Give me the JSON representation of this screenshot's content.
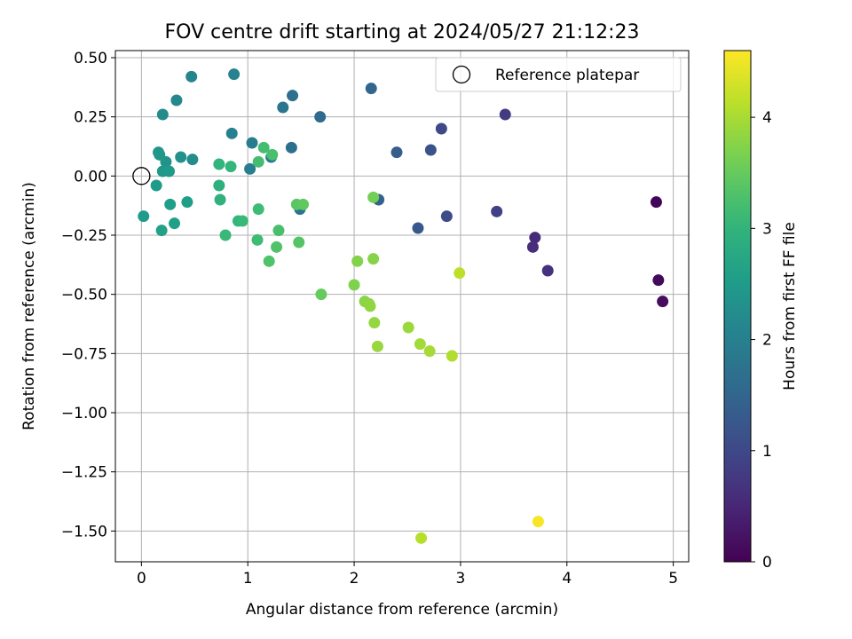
{
  "chart_data": {
    "type": "scatter",
    "title": "FOV centre drift starting at 2024/05/27 21:12:23",
    "xlabel": "Angular distance from reference (arcmin)",
    "ylabel": "Rotation from reference (arcmin)",
    "xlim": [
      -0.245,
      5.145
    ],
    "ylim": [
      -1.63,
      0.53
    ],
    "x_ticks": [
      0,
      1,
      2,
      3,
      4,
      5
    ],
    "x_tick_labels": [
      "0",
      "1",
      "2",
      "3",
      "4",
      "5"
    ],
    "y_ticks": [
      0.5,
      0.25,
      0.0,
      -0.25,
      -0.5,
      -0.75,
      -1.0,
      -1.25,
      -1.5
    ],
    "y_tick_labels": [
      "0.50",
      "0.25",
      "0.00",
      "−0.25",
      "−0.50",
      "−0.75",
      "−1.00",
      "−1.25",
      "−1.50"
    ],
    "grid": true,
    "colormap": "viridis",
    "colorbar": {
      "label": "Hours from first FF file",
      "range": [
        0,
        4.6
      ],
      "ticks": [
        0,
        1,
        2,
        3,
        4
      ],
      "tick_labels": [
        "0",
        "1",
        "2",
        "3",
        "4"
      ]
    },
    "legend": {
      "placement": "top-right",
      "entries": [
        {
          "label": "Reference platepar",
          "marker": "open-circle"
        }
      ]
    },
    "reference_point": {
      "x": 0.0,
      "y": 0.0
    },
    "points": [
      {
        "x": 4.84,
        "y": -0.11,
        "c": 0.05
      },
      {
        "x": 4.86,
        "y": -0.44,
        "c": 0.1
      },
      {
        "x": 4.9,
        "y": -0.53,
        "c": 0.15
      },
      {
        "x": 3.7,
        "y": -0.26,
        "c": 0.55
      },
      {
        "x": 3.68,
        "y": -0.3,
        "c": 0.6
      },
      {
        "x": 3.82,
        "y": -0.4,
        "c": 0.65
      },
      {
        "x": 3.42,
        "y": 0.26,
        "c": 0.8
      },
      {
        "x": 3.34,
        "y": -0.15,
        "c": 0.9
      },
      {
        "x": 2.82,
        "y": 0.2,
        "c": 1.0
      },
      {
        "x": 2.87,
        "y": -0.17,
        "c": 1.05
      },
      {
        "x": 2.72,
        "y": 0.11,
        "c": 1.15
      },
      {
        "x": 2.6,
        "y": -0.22,
        "c": 1.25
      },
      {
        "x": 2.4,
        "y": 0.1,
        "c": 1.35
      },
      {
        "x": 2.23,
        "y": -0.1,
        "c": 1.45
      },
      {
        "x": 2.16,
        "y": 0.37,
        "c": 1.5
      },
      {
        "x": 1.68,
        "y": 0.25,
        "c": 1.6
      },
      {
        "x": 1.42,
        "y": 0.34,
        "c": 1.65
      },
      {
        "x": 1.41,
        "y": 0.12,
        "c": 1.7
      },
      {
        "x": 1.49,
        "y": -0.14,
        "c": 1.75
      },
      {
        "x": 1.33,
        "y": 0.29,
        "c": 1.8
      },
      {
        "x": 1.22,
        "y": 0.08,
        "c": 1.85
      },
      {
        "x": 1.04,
        "y": 0.14,
        "c": 1.9
      },
      {
        "x": 1.02,
        "y": 0.03,
        "c": 1.95
      },
      {
        "x": 0.85,
        "y": 0.18,
        "c": 2.0
      },
      {
        "x": 0.87,
        "y": 0.43,
        "c": 2.05
      },
      {
        "x": 0.47,
        "y": 0.42,
        "c": 2.1
      },
      {
        "x": 0.33,
        "y": 0.32,
        "c": 2.15
      },
      {
        "x": 0.2,
        "y": 0.26,
        "c": 2.2
      },
      {
        "x": 0.48,
        "y": 0.07,
        "c": 2.25
      },
      {
        "x": 0.37,
        "y": 0.08,
        "c": 2.3
      },
      {
        "x": 0.23,
        "y": 0.06,
        "c": 2.35
      },
      {
        "x": 0.16,
        "y": 0.1,
        "c": 2.4
      },
      {
        "x": 0.17,
        "y": 0.09,
        "c": 2.42
      },
      {
        "x": 0.2,
        "y": 0.02,
        "c": 2.45
      },
      {
        "x": 0.26,
        "y": 0.02,
        "c": 2.48
      },
      {
        "x": 0.14,
        "y": -0.04,
        "c": 2.5
      },
      {
        "x": 0.02,
        "y": -0.17,
        "c": 2.52
      },
      {
        "x": 0.27,
        "y": -0.12,
        "c": 2.55
      },
      {
        "x": 0.43,
        "y": -0.11,
        "c": 2.58
      },
      {
        "x": 0.31,
        "y": -0.2,
        "c": 2.6
      },
      {
        "x": 0.19,
        "y": -0.23,
        "c": 2.62
      },
      {
        "x": 0.73,
        "y": -0.04,
        "c": 2.9
      },
      {
        "x": 0.74,
        "y": -0.1,
        "c": 2.95
      },
      {
        "x": 0.73,
        "y": 0.05,
        "c": 3.0
      },
      {
        "x": 0.84,
        "y": 0.04,
        "c": 3.05
      },
      {
        "x": 0.91,
        "y": -0.19,
        "c": 3.05
      },
      {
        "x": 0.95,
        "y": -0.19,
        "c": 3.1
      },
      {
        "x": 0.79,
        "y": -0.25,
        "c": 3.1
      },
      {
        "x": 1.1,
        "y": -0.14,
        "c": 3.15
      },
      {
        "x": 1.09,
        "y": -0.27,
        "c": 3.15
      },
      {
        "x": 1.15,
        "y": 0.12,
        "c": 3.2
      },
      {
        "x": 1.1,
        "y": 0.06,
        "c": 3.2
      },
      {
        "x": 1.23,
        "y": 0.09,
        "c": 3.25
      },
      {
        "x": 1.29,
        "y": -0.23,
        "c": 3.25
      },
      {
        "x": 1.27,
        "y": -0.3,
        "c": 3.3
      },
      {
        "x": 1.2,
        "y": -0.36,
        "c": 3.3
      },
      {
        "x": 1.48,
        "y": -0.28,
        "c": 3.35
      },
      {
        "x": 1.46,
        "y": -0.12,
        "c": 3.4
      },
      {
        "x": 1.52,
        "y": -0.12,
        "c": 3.45
      },
      {
        "x": 1.69,
        "y": -0.5,
        "c": 3.5
      },
      {
        "x": 2.18,
        "y": -0.09,
        "c": 3.6
      },
      {
        "x": 2.0,
        "y": -0.46,
        "c": 3.7
      },
      {
        "x": 2.03,
        "y": -0.36,
        "c": 3.72
      },
      {
        "x": 2.18,
        "y": -0.35,
        "c": 3.75
      },
      {
        "x": 2.1,
        "y": -0.53,
        "c": 3.78
      },
      {
        "x": 2.14,
        "y": -0.54,
        "c": 3.8
      },
      {
        "x": 2.15,
        "y": -0.55,
        "c": 3.82
      },
      {
        "x": 2.19,
        "y": -0.62,
        "c": 3.85
      },
      {
        "x": 2.22,
        "y": -0.72,
        "c": 3.88
      },
      {
        "x": 2.51,
        "y": -0.64,
        "c": 3.9
      },
      {
        "x": 2.62,
        "y": -0.71,
        "c": 3.95
      },
      {
        "x": 2.71,
        "y": -0.74,
        "c": 3.98
      },
      {
        "x": 2.92,
        "y": -0.76,
        "c": 4.05
      },
      {
        "x": 2.99,
        "y": -0.41,
        "c": 4.15
      },
      {
        "x": 2.63,
        "y": -1.53,
        "c": 4.1
      },
      {
        "x": 3.73,
        "y": -1.46,
        "c": 4.55
      }
    ]
  }
}
